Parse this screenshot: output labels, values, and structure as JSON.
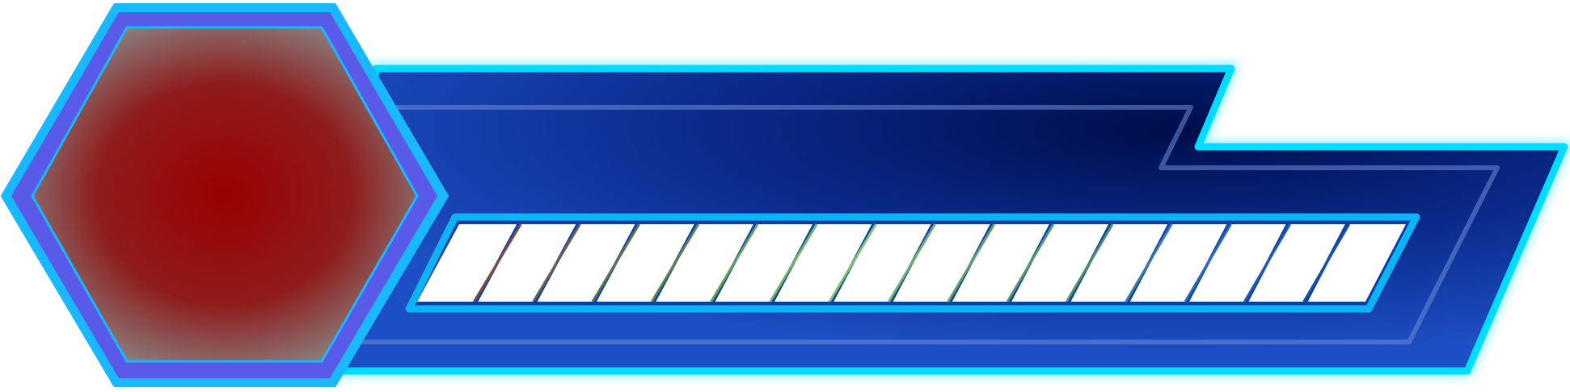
{
  "health_bar": {
    "segments_total": 16,
    "segments_filled": 16,
    "segment_color": "#ffffff",
    "frame_color": "#0db4f5",
    "divider_colors": [
      "#7a4a4a",
      "#6d5e54",
      "#5f7150",
      "#5c8450",
      "#66a05a",
      "#72b266",
      "#7cc070",
      "#72b06e",
      "#62a06a",
      "#56986c",
      "#4a8e6c",
      "#3b7ca6",
      "#2a6ab8",
      "#1e5cb4",
      "#194fa8"
    ]
  },
  "portrait_slot": {
    "shape": "hexagon",
    "fill_color": "#9a0000",
    "edge_color": "#8a7a7a",
    "frame_color": "#19b8ff",
    "inner_frame_color": "#5a5ae8"
  },
  "panel": {
    "dark_color": "#000d4a",
    "light_color": "#1d4fc4",
    "outline_color": "#00dcff",
    "trim_color": "#6e8cd8"
  }
}
